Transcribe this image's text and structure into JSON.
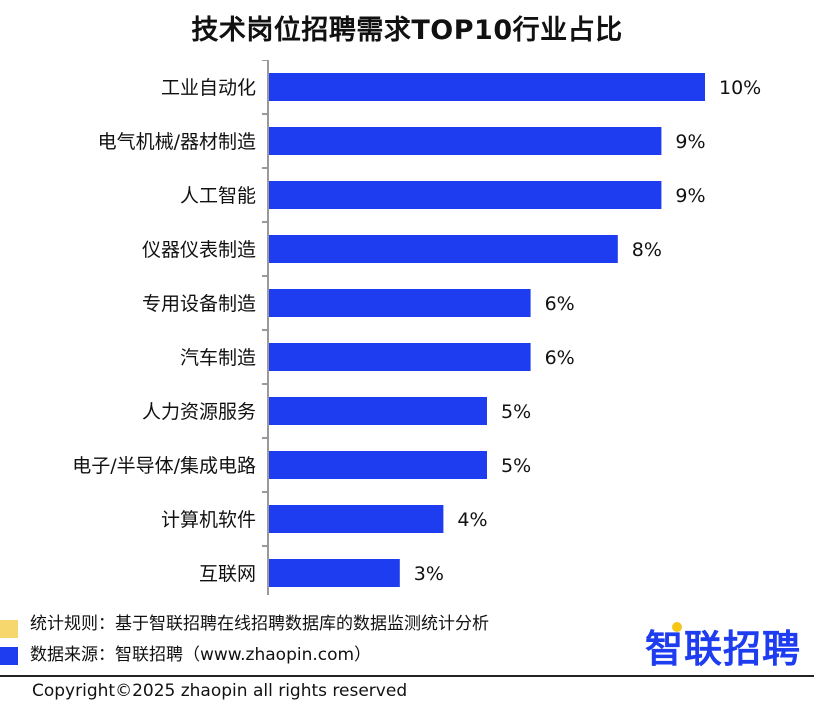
{
  "chart_data": {
    "type": "bar",
    "orientation": "horizontal",
    "title": "技术岗位招聘需求TOP10行业占比",
    "categories": [
      "工业自动化",
      "电气机械/器材制造",
      "人工智能",
      "仪器仪表制造",
      "专用设备制造",
      "汽车制造",
      "人力资源服务",
      "电子/半导体/集成电路",
      "计算机软件",
      "互联网"
    ],
    "values": [
      10,
      9,
      9,
      8,
      6,
      6,
      5,
      5,
      4,
      3
    ],
    "value_labels": [
      "10%",
      "9%",
      "9%",
      "8%",
      "6%",
      "6%",
      "5%",
      "5%",
      "4%",
      "3%"
    ],
    "bar_color": "#1e3cf0",
    "grid": false,
    "legend": "none"
  },
  "notes": {
    "rule_text": "统计规则：基于智联招聘在线招聘数据库的数据监测统计分析",
    "source_text": "数据来源：智联招聘（www.zhaopin.com）",
    "rule_color": "#f5d76e",
    "source_color": "#1e3cf0"
  },
  "logo": {
    "text": "智联招聘",
    "dot_color": "#f5c518"
  },
  "copyright": "Copyright©2025 zhaopin all rights reserved"
}
